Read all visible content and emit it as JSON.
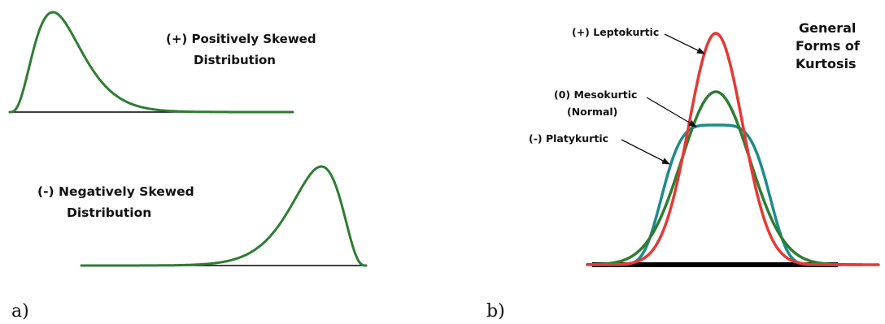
{
  "panel_a": {
    "letter": "a)",
    "positive": {
      "line1": "(+) Positively Skewed",
      "line2": "Distribution"
    },
    "negative": {
      "line1": "(-) Negatively Skewed",
      "line2": "Distribution"
    }
  },
  "panel_b": {
    "letter": "b)",
    "title_lines": [
      "General",
      "Forms of",
      "Kurtosis"
    ],
    "labels": {
      "lepto": "(+) Leptokurtic",
      "meso_line1": "(0) Mesokurtic",
      "meso_line2": "(Normal)",
      "platy": "(-) Platykurtic"
    }
  },
  "colors": {
    "skew_curve": "#2e7d32",
    "lepto": "#e53935",
    "meso": "#2e7d32",
    "platy": "#1f8a8a",
    "baseline": "#000000",
    "text": "#111111"
  }
}
